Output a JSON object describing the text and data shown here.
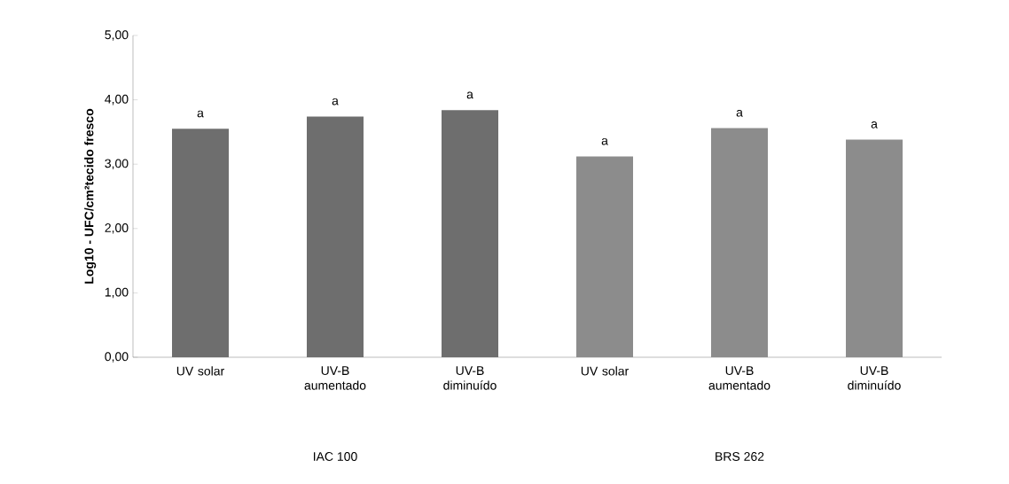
{
  "chart_data": {
    "type": "bar",
    "ylabel": "Log10 - UFC/cm²tecido fresco",
    "categories": [
      "UV solar",
      "UV-B aumentado",
      "UV-B diminuído",
      "UV solar",
      "UV-B aumentado",
      "UV-B diminuído"
    ],
    "values": [
      3.55,
      3.74,
      3.84,
      3.12,
      3.56,
      3.38
    ],
    "colors": [
      "#6e6e6e",
      "#6e6e6e",
      "#6e6e6e",
      "#8c8c8c",
      "#8c8c8c",
      "#8c8c8c"
    ],
    "value_labels": [
      "a",
      "a",
      "a",
      "a",
      "a",
      "a"
    ],
    "annotations": [
      "IAC 100",
      "BRS 262"
    ],
    "ylim": [
      0,
      5
    ],
    "yticks": [
      {
        "value": 0,
        "label": "0,00"
      },
      {
        "value": 1,
        "label": "1,00"
      },
      {
        "value": 2,
        "label": "2,00"
      },
      {
        "value": 3,
        "label": "3,00"
      },
      {
        "value": 4,
        "label": "4,00"
      },
      {
        "value": 5,
        "label": "5,00"
      }
    ],
    "grid": false
  }
}
